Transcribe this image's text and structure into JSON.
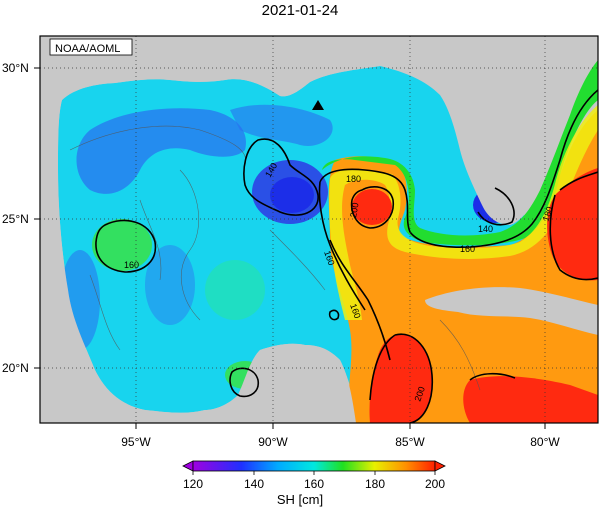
{
  "title": "2021-01-24",
  "credit": "NOAA/AOML",
  "lat_labels": [
    "30°N",
    "25°N",
    "20°N"
  ],
  "lon_labels": [
    "95°W",
    "90°W",
    "85°W",
    "80°W"
  ],
  "contour_labels": [
    "140",
    "140",
    "160",
    "160",
    "160",
    "160",
    "180",
    "180",
    "200",
    "200"
  ],
  "colorbar": {
    "label": "SH [cm]",
    "ticks": [
      "120",
      "140",
      "160",
      "180",
      "200"
    ],
    "stops": [
      "#a000e0",
      "#1f30ff",
      "#00aaff",
      "#00e8e0",
      "#20e020",
      "#e8f000",
      "#ff9000",
      "#ff2000"
    ]
  },
  "colors": {
    "land": "#c8c8c8",
    "deep_blue": "#2a4fe0",
    "cyan": "#10d0f0",
    "green": "#30e070",
    "orange": "#ff9a10",
    "red": "#ff2a10"
  },
  "marker": "triangle-marker"
}
